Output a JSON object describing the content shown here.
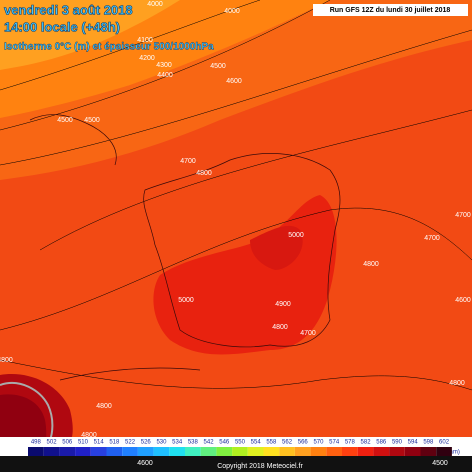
{
  "header": {
    "date": "vendredi 3 août 2018",
    "time": "14:00 locale (+48h)",
    "subtitle": "Isotherme 0°C (m) et épaisseur 500/1000hPa",
    "run": "Run GFS 12Z du lundi 30 juillet 2018"
  },
  "contour_labels": [
    "4000",
    "4000",
    "4100",
    "4200",
    "4300",
    "4400",
    "4500",
    "4600",
    "4500",
    "4500",
    "4700",
    "4800",
    "5000",
    "4700",
    "4700",
    "4800",
    "5000",
    "4900",
    "4800",
    "4700",
    "4600",
    "4800",
    "4800",
    "4800",
    "4800",
    "4600",
    "4500"
  ],
  "legend": {
    "items": [
      {
        "label": "498",
        "color": "#0a0a6e"
      },
      {
        "label": "502",
        "color": "#10108c"
      },
      {
        "label": "506",
        "color": "#1a1aaa"
      },
      {
        "label": "510",
        "color": "#2020c8"
      },
      {
        "label": "514",
        "color": "#2840e0"
      },
      {
        "label": "518",
        "color": "#2060f0"
      },
      {
        "label": "522",
        "color": "#2080ff"
      },
      {
        "label": "526",
        "color": "#20a0ff"
      },
      {
        "label": "530",
        "color": "#20c0ff"
      },
      {
        "label": "534",
        "color": "#20e0f0"
      },
      {
        "label": "538",
        "color": "#40f0c0"
      },
      {
        "label": "542",
        "color": "#60f080"
      },
      {
        "label": "546",
        "color": "#80f040"
      },
      {
        "label": "550",
        "color": "#b0f020"
      },
      {
        "label": "554",
        "color": "#e0f020"
      },
      {
        "label": "558",
        "color": "#ffe020"
      },
      {
        "label": "562",
        "color": "#ffc020"
      },
      {
        "label": "566",
        "color": "#ffa020"
      },
      {
        "label": "570",
        "color": "#ff8010"
      },
      {
        "label": "574",
        "color": "#ff6010"
      },
      {
        "label": "578",
        "color": "#ff4010"
      },
      {
        "label": "582",
        "color": "#f02010"
      },
      {
        "label": "586",
        "color": "#d01010"
      },
      {
        "label": "590",
        "color": "#b00810"
      },
      {
        "label": "594",
        "color": "#900010"
      },
      {
        "label": "598",
        "color": "#600010"
      },
      {
        "label": "602",
        "color": "#300010"
      }
    ],
    "unit": "(dam)"
  },
  "footer": {
    "copyright": "Copyright 2018 Meteociel.fr"
  }
}
